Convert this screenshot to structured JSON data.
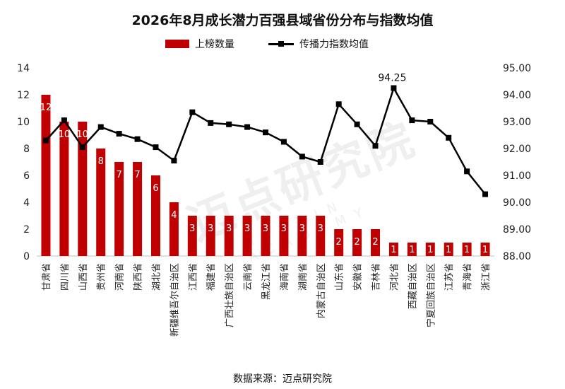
{
  "chart_data": {
    "type": "bar",
    "title": "2026年8月成长潜力百强县域省份分布与指数均值",
    "legend": [
      "上榜数量",
      "传播力指数均值"
    ],
    "legend_position": "top",
    "categories": [
      "甘肃省",
      "四川省",
      "山西省",
      "贵州省",
      "河南省",
      "陕西省",
      "湖北省",
      "新疆维吾尔自治区",
      "江西省",
      "福建省",
      "广西壮族自治区",
      "云南省",
      "黑龙江省",
      "海南省",
      "湖南省",
      "内蒙古自治区",
      "山东省",
      "安徽省",
      "吉林省",
      "河北省",
      "西藏自治区",
      "宁夏回族自治区",
      "江苏省",
      "青海省",
      "浙江省"
    ],
    "series": [
      {
        "name": "上榜数量",
        "type": "bar",
        "axis": "left",
        "color": "#c00000",
        "values": [
          12,
          10,
          10,
          8,
          7,
          7,
          6,
          4,
          3,
          3,
          3,
          3,
          3,
          3,
          3,
          3,
          2,
          2,
          2,
          1,
          1,
          1,
          1,
          1,
          1
        ]
      },
      {
        "name": "传播力指数均值",
        "type": "line",
        "axis": "right",
        "color": "#000000",
        "values": [
          92.3,
          93.05,
          92.05,
          92.8,
          92.55,
          92.35,
          92.05,
          91.55,
          93.35,
          92.95,
          92.9,
          92.8,
          92.6,
          92.25,
          91.7,
          91.5,
          93.65,
          92.9,
          92.1,
          94.25,
          93.05,
          93.0,
          92.4,
          91.15,
          90.3
        ]
      }
    ],
    "y_left": {
      "min": 0,
      "max": 14,
      "ticks": [
        "0",
        "2",
        "4",
        "6",
        "8",
        "10",
        "12",
        "14"
      ]
    },
    "y_right": {
      "min": 88.0,
      "max": 95.0,
      "ticks": [
        "88.00",
        "89.00",
        "90.00",
        "91.00",
        "92.00",
        "93.00",
        "94.00",
        "95.00"
      ]
    },
    "annotations": [
      {
        "category": "河北省",
        "text": "94.25"
      }
    ],
    "grid": false
  },
  "source": "数据来源：迈点研究院",
  "watermark": {
    "main": "迈点研究院",
    "sub": "MEADIN ACADEMY"
  }
}
